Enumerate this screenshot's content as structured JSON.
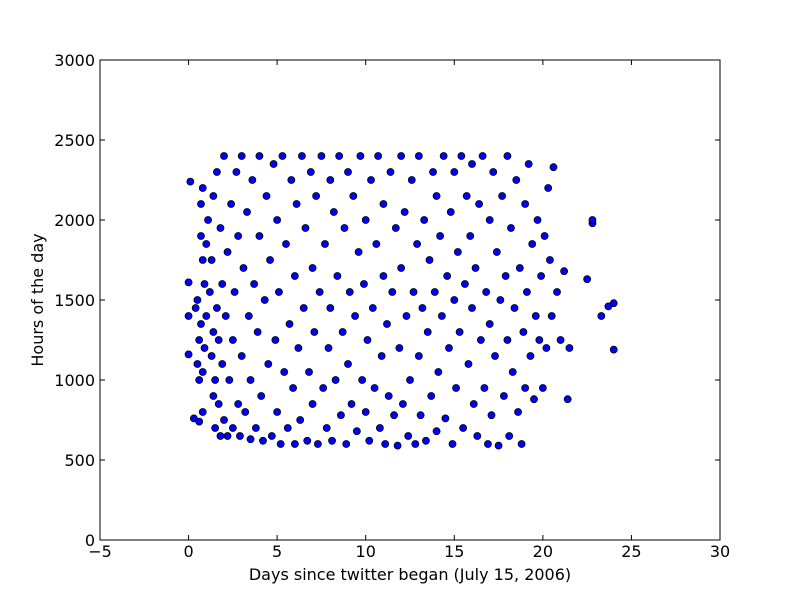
{
  "chart_data": {
    "type": "scatter",
    "title": "",
    "xlabel": "Days since twitter began (July 15, 2006)",
    "ylabel": "Hours of the day",
    "xlim": [
      -5,
      30
    ],
    "ylim": [
      0,
      3000
    ],
    "xticks": [
      -5,
      0,
      5,
      10,
      15,
      20,
      25,
      30
    ],
    "yticks": [
      0,
      500,
      1000,
      1500,
      2000,
      2500,
      3000
    ],
    "xtick_labels": [
      "−5",
      "0",
      "5",
      "10",
      "15",
      "20",
      "25",
      "30"
    ],
    "ytick_labels": [
      "0",
      "500",
      "1000",
      "1500",
      "2000",
      "2500",
      "3000"
    ],
    "grid": false,
    "legend": "none",
    "marker_color": "#0000ff",
    "marker_edge_color": "#000000",
    "series": [
      {
        "points": [
          [
            0.0,
            1160
          ],
          [
            0.0,
            1400
          ],
          [
            0.0,
            1610
          ],
          [
            0.1,
            2240
          ],
          [
            0.3,
            760
          ],
          [
            0.4,
            1450
          ],
          [
            0.5,
            1100
          ],
          [
            0.5,
            1500
          ],
          [
            0.6,
            740
          ],
          [
            0.6,
            1000
          ],
          [
            0.6,
            1250
          ],
          [
            0.7,
            1350
          ],
          [
            0.7,
            1900
          ],
          [
            0.7,
            2100
          ],
          [
            0.8,
            800
          ],
          [
            0.8,
            1050
          ],
          [
            0.8,
            1750
          ],
          [
            0.8,
            2200
          ],
          [
            0.9,
            1200
          ],
          [
            0.9,
            1600
          ],
          [
            1.0,
            1400
          ],
          [
            1.0,
            1850
          ],
          [
            1.1,
            2000
          ],
          [
            1.2,
            1550
          ],
          [
            1.3,
            1150
          ],
          [
            1.3,
            1750
          ],
          [
            1.4,
            900
          ],
          [
            1.4,
            1300
          ],
          [
            1.4,
            2150
          ],
          [
            1.5,
            700
          ],
          [
            1.5,
            1000
          ],
          [
            1.6,
            1450
          ],
          [
            1.6,
            2300
          ],
          [
            1.7,
            850
          ],
          [
            1.7,
            1250
          ],
          [
            1.8,
            650
          ],
          [
            1.8,
            1950
          ],
          [
            1.9,
            1100
          ],
          [
            1.9,
            1600
          ],
          [
            2.0,
            750
          ],
          [
            2.0,
            2400
          ],
          [
            2.1,
            1400
          ],
          [
            2.2,
            650
          ],
          [
            2.2,
            1800
          ],
          [
            2.3,
            1000
          ],
          [
            2.4,
            2100
          ],
          [
            2.5,
            1250
          ],
          [
            2.5,
            700
          ],
          [
            2.6,
            1550
          ],
          [
            2.7,
            2300
          ],
          [
            2.8,
            850
          ],
          [
            2.8,
            1900
          ],
          [
            2.9,
            650
          ],
          [
            3.0,
            1150
          ],
          [
            3.0,
            2400
          ],
          [
            3.1,
            1700
          ],
          [
            3.2,
            800
          ],
          [
            3.3,
            2050
          ],
          [
            3.4,
            1400
          ],
          [
            3.5,
            1000
          ],
          [
            3.5,
            630
          ],
          [
            3.6,
            2250
          ],
          [
            3.7,
            1600
          ],
          [
            3.8,
            700
          ],
          [
            3.9,
            1300
          ],
          [
            4.0,
            1900
          ],
          [
            4.0,
            2400
          ],
          [
            4.1,
            900
          ],
          [
            4.2,
            620
          ],
          [
            4.3,
            1500
          ],
          [
            4.4,
            2150
          ],
          [
            4.5,
            1100
          ],
          [
            4.6,
            1750
          ],
          [
            4.7,
            650
          ],
          [
            4.8,
            2350
          ],
          [
            4.9,
            1250
          ],
          [
            5.0,
            800
          ],
          [
            5.0,
            2000
          ],
          [
            5.1,
            1550
          ],
          [
            5.2,
            600
          ],
          [
            5.3,
            2400
          ],
          [
            5.4,
            1050
          ],
          [
            5.5,
            1850
          ],
          [
            5.6,
            700
          ],
          [
            5.7,
            1350
          ],
          [
            5.8,
            2250
          ],
          [
            5.9,
            950
          ],
          [
            6.0,
            600
          ],
          [
            6.0,
            1650
          ],
          [
            6.1,
            2100
          ],
          [
            6.2,
            1200
          ],
          [
            6.3,
            750
          ],
          [
            6.4,
            2400
          ],
          [
            6.5,
            1450
          ],
          [
            6.6,
            1950
          ],
          [
            6.7,
            620
          ],
          [
            6.8,
            1050
          ],
          [
            6.9,
            2300
          ],
          [
            7.0,
            1700
          ],
          [
            7.0,
            850
          ],
          [
            7.1,
            1300
          ],
          [
            7.2,
            2150
          ],
          [
            7.3,
            600
          ],
          [
            7.4,
            1550
          ],
          [
            7.5,
            2400
          ],
          [
            7.6,
            950
          ],
          [
            7.7,
            1850
          ],
          [
            7.8,
            700
          ],
          [
            7.9,
            1200
          ],
          [
            8.0,
            2250
          ],
          [
            8.0,
            1450
          ],
          [
            8.1,
            620
          ],
          [
            8.2,
            2050
          ],
          [
            8.3,
            1000
          ],
          [
            8.4,
            1650
          ],
          [
            8.5,
            2400
          ],
          [
            8.6,
            780
          ],
          [
            8.7,
            1300
          ],
          [
            8.8,
            1950
          ],
          [
            8.9,
            600
          ],
          [
            9.0,
            1100
          ],
          [
            9.0,
            2300
          ],
          [
            9.1,
            1550
          ],
          [
            9.2,
            850
          ],
          [
            9.3,
            2150
          ],
          [
            9.4,
            1400
          ],
          [
            9.5,
            680
          ],
          [
            9.6,
            1800
          ],
          [
            9.7,
            2400
          ],
          [
            9.8,
            1000
          ],
          [
            9.9,
            1600
          ],
          [
            10.0,
            2000
          ],
          [
            10.0,
            800
          ],
          [
            10.1,
            1250
          ],
          [
            10.2,
            620
          ],
          [
            10.3,
            2250
          ],
          [
            10.4,
            1450
          ],
          [
            10.5,
            950
          ],
          [
            10.6,
            1850
          ],
          [
            10.7,
            2400
          ],
          [
            10.8,
            700
          ],
          [
            10.9,
            1150
          ],
          [
            11.0,
            1650
          ],
          [
            11.0,
            2100
          ],
          [
            11.1,
            600
          ],
          [
            11.2,
            1350
          ],
          [
            11.3,
            900
          ],
          [
            11.4,
            2300
          ],
          [
            11.5,
            1550
          ],
          [
            11.6,
            780
          ],
          [
            11.7,
            1950
          ],
          [
            11.8,
            590
          ],
          [
            11.9,
            1200
          ],
          [
            12.0,
            2400
          ],
          [
            12.0,
            1700
          ],
          [
            12.1,
            850
          ],
          [
            12.2,
            2050
          ],
          [
            12.3,
            1400
          ],
          [
            12.4,
            650
          ],
          [
            12.5,
            1000
          ],
          [
            12.6,
            2250
          ],
          [
            12.7,
            1550
          ],
          [
            12.8,
            600
          ],
          [
            12.9,
            1850
          ],
          [
            13.0,
            1150
          ],
          [
            13.0,
            2400
          ],
          [
            13.1,
            780
          ],
          [
            13.2,
            1450
          ],
          [
            13.3,
            2000
          ],
          [
            13.4,
            620
          ],
          [
            13.5,
            1300
          ],
          [
            13.6,
            1750
          ],
          [
            13.7,
            900
          ],
          [
            13.8,
            2300
          ],
          [
            13.9,
            1550
          ],
          [
            14.0,
            680
          ],
          [
            14.0,
            2150
          ],
          [
            14.1,
            1050
          ],
          [
            14.2,
            1900
          ],
          [
            14.3,
            1400
          ],
          [
            14.4,
            2400
          ],
          [
            14.5,
            760
          ],
          [
            14.6,
            1650
          ],
          [
            14.7,
            1200
          ],
          [
            14.8,
            2050
          ],
          [
            14.9,
            600
          ],
          [
            15.0,
            1500
          ],
          [
            15.0,
            2300
          ],
          [
            15.1,
            950
          ],
          [
            15.2,
            1800
          ],
          [
            15.3,
            1300
          ],
          [
            15.4,
            2400
          ],
          [
            15.5,
            700
          ],
          [
            15.6,
            1600
          ],
          [
            15.7,
            2150
          ],
          [
            15.8,
            1100
          ],
          [
            15.9,
            1900
          ],
          [
            16.0,
            1450
          ],
          [
            16.0,
            2350
          ],
          [
            16.1,
            850
          ],
          [
            16.2,
            1700
          ],
          [
            16.3,
            650
          ],
          [
            16.4,
            2100
          ],
          [
            16.5,
            1250
          ],
          [
            16.6,
            2400
          ],
          [
            16.7,
            950
          ],
          [
            16.8,
            1550
          ],
          [
            16.9,
            600
          ],
          [
            17.0,
            2000
          ],
          [
            17.0,
            1350
          ],
          [
            17.1,
            780
          ],
          [
            17.2,
            2300
          ],
          [
            17.3,
            1150
          ],
          [
            17.4,
            1800
          ],
          [
            17.5,
            590
          ],
          [
            17.6,
            1500
          ],
          [
            17.7,
            2150
          ],
          [
            17.8,
            900
          ],
          [
            17.9,
            1650
          ],
          [
            18.0,
            2400
          ],
          [
            18.0,
            1250
          ],
          [
            18.1,
            650
          ],
          [
            18.2,
            1950
          ],
          [
            18.3,
            1050
          ],
          [
            18.4,
            1450
          ],
          [
            18.5,
            2250
          ],
          [
            18.6,
            800
          ],
          [
            18.7,
            1700
          ],
          [
            18.8,
            600
          ],
          [
            18.9,
            1300
          ],
          [
            19.0,
            2100
          ],
          [
            19.0,
            950
          ],
          [
            19.1,
            1550
          ],
          [
            19.2,
            2350
          ],
          [
            19.3,
            1150
          ],
          [
            19.4,
            1850
          ],
          [
            19.5,
            880
          ],
          [
            19.6,
            1400
          ],
          [
            19.7,
            2000
          ],
          [
            19.8,
            1250
          ],
          [
            19.9,
            1650
          ],
          [
            20.0,
            950
          ],
          [
            20.1,
            1900
          ],
          [
            20.2,
            1200
          ],
          [
            20.3,
            2200
          ],
          [
            20.4,
            1750
          ],
          [
            20.5,
            1400
          ],
          [
            20.6,
            2330
          ],
          [
            20.8,
            1550
          ],
          [
            21.0,
            1250
          ],
          [
            21.2,
            1680
          ],
          [
            21.4,
            880
          ],
          [
            21.5,
            1200
          ],
          [
            22.5,
            1630
          ],
          [
            22.8,
            1980
          ],
          [
            22.8,
            2000
          ],
          [
            23.3,
            1400
          ],
          [
            23.7,
            1460
          ],
          [
            24.0,
            1190
          ],
          [
            24.0,
            1480
          ]
        ]
      }
    ]
  }
}
